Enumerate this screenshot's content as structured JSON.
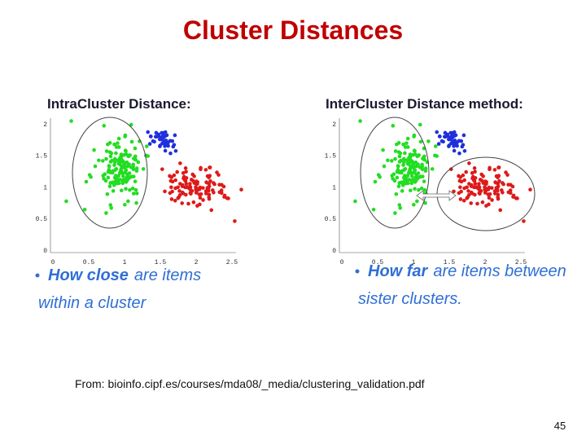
{
  "title": "Cluster Distances",
  "panels": [
    {
      "heading": "IntraCluster Distance:",
      "y_tick_labels": [
        "2",
        "1.5",
        "1",
        "0.5",
        "0"
      ],
      "x_tick_labels": [
        "0",
        "0.5",
        "1",
        "1.5",
        "2",
        "2.5"
      ],
      "bullet": {
        "emphasis": "How close",
        "rest": "are  items",
        "line2": "within a cluster"
      }
    },
    {
      "heading": "InterCluster Distance method:",
      "y_tick_labels": [
        "2",
        "1.5",
        "1",
        "0.5",
        "0"
      ],
      "x_tick_labels": [
        "0",
        "0.5",
        "1",
        "1.5",
        "2",
        "2.5"
      ],
      "bullet": {
        "emphasis": "How far",
        "rest": "are items between",
        "line2": "sister clusters."
      }
    }
  ],
  "source": "From: bioinfo.cipf.es/courses/mda08/_media/clustering_validation.pdf",
  "page_number": "45"
}
